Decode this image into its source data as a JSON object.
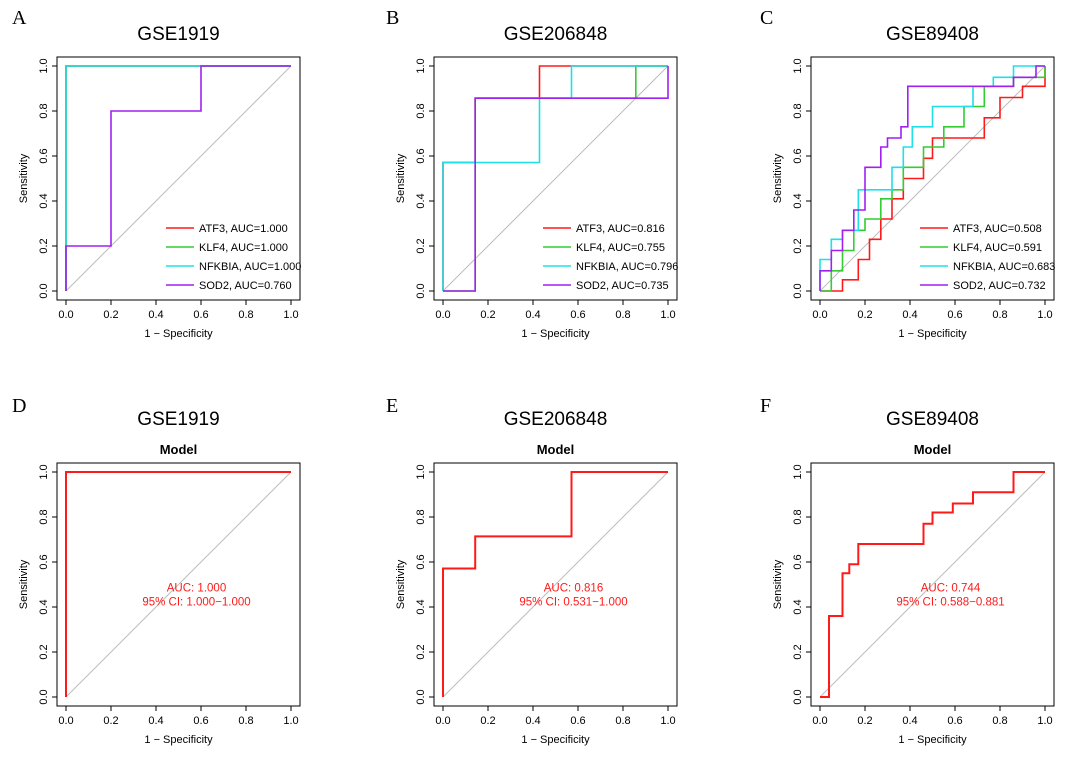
{
  "colors": {
    "red": "#ff1a1a",
    "green": "#33cc33",
    "cyan": "#1ee0e6",
    "purple": "#a020f0",
    "diagonal": "#bdbdbd"
  },
  "chart_data": [
    {
      "panel": "A",
      "title": "GSE1919",
      "type": "line",
      "xlabel": "1 − Specificity",
      "ylabel": "Sensitivity",
      "xlim": [
        0,
        1
      ],
      "ylim": [
        0,
        1
      ],
      "ticks": [
        "0.0",
        "0.2",
        "0.4",
        "0.6",
        "0.8",
        "1.0"
      ],
      "legend_position": "bottom-right",
      "series": [
        {
          "name": "ATF3",
          "legend": "ATF3, AUC=1.000",
          "color": "#ff1a1a",
          "points": [
            [
              0,
              0
            ],
            [
              0,
              1
            ],
            [
              1,
              1
            ]
          ]
        },
        {
          "name": "KLF4",
          "legend": "KLF4, AUC=1.000",
          "color": "#33cc33",
          "points": [
            [
              0,
              0
            ],
            [
              0,
              1
            ],
            [
              1,
              1
            ]
          ]
        },
        {
          "name": "NFKBIA",
          "legend": "NFKBIA, AUC=1.000",
          "color": "#1ee0e6",
          "points": [
            [
              0,
              0
            ],
            [
              0,
              1
            ],
            [
              1,
              1
            ]
          ]
        },
        {
          "name": "SOD2",
          "legend": "SOD2, AUC=0.760",
          "color": "#a020f0",
          "points": [
            [
              0,
              0
            ],
            [
              0,
              0.2
            ],
            [
              0.2,
              0.2
            ],
            [
              0.2,
              0.8
            ],
            [
              0.6,
              0.8
            ],
            [
              0.6,
              1
            ],
            [
              1,
              1
            ]
          ]
        }
      ]
    },
    {
      "panel": "B",
      "title": "GSE206848",
      "type": "line",
      "xlabel": "1 − Specificity",
      "ylabel": "Sensitivity",
      "xlim": [
        0,
        1
      ],
      "ylim": [
        0,
        1
      ],
      "ticks": [
        "0.0",
        "0.2",
        "0.4",
        "0.6",
        "0.8",
        "1.0"
      ],
      "legend_position": "bottom-right",
      "series": [
        {
          "name": "ATF3",
          "legend": "ATF3, AUC=0.816",
          "color": "#ff1a1a",
          "points": [
            [
              0,
              0
            ],
            [
              0,
              0.571
            ],
            [
              0.143,
              0.571
            ],
            [
              0.143,
              0.857
            ],
            [
              0.429,
              0.857
            ],
            [
              0.429,
              1
            ],
            [
              1,
              1
            ]
          ]
        },
        {
          "name": "KLF4",
          "legend": "KLF4, AUC=0.755",
          "color": "#33cc33",
          "points": [
            [
              0,
              0
            ],
            [
              0.143,
              0
            ],
            [
              0.143,
              0.857
            ],
            [
              0.857,
              0.857
            ],
            [
              0.857,
              1
            ],
            [
              1,
              1
            ]
          ]
        },
        {
          "name": "NFKBIA",
          "legend": "NFKBIA, AUC=0.796",
          "color": "#1ee0e6",
          "points": [
            [
              0,
              0
            ],
            [
              0,
              0.571
            ],
            [
              0.429,
              0.571
            ],
            [
              0.429,
              0.857
            ],
            [
              0.571,
              0.857
            ],
            [
              0.571,
              1
            ],
            [
              1,
              1
            ]
          ]
        },
        {
          "name": "SOD2",
          "legend": "SOD2, AUC=0.735",
          "color": "#a020f0",
          "points": [
            [
              0,
              0
            ],
            [
              0.143,
              0
            ],
            [
              0.143,
              0.857
            ],
            [
              1,
              0.857
            ],
            [
              1,
              1
            ]
          ]
        }
      ]
    },
    {
      "panel": "C",
      "title": "GSE89408",
      "type": "line",
      "xlabel": "1 − Specificity",
      "ylabel": "Sensitivity",
      "xlim": [
        0,
        1
      ],
      "ylim": [
        0,
        1
      ],
      "ticks": [
        "0.0",
        "0.2",
        "0.4",
        "0.6",
        "0.8",
        "1.0"
      ],
      "legend_position": "bottom-right",
      "series": [
        {
          "name": "ATF3",
          "legend": "ATF3, AUC=0.508",
          "color": "#ff1a1a",
          "points": [
            [
              0,
              0
            ],
            [
              0.1,
              0
            ],
            [
              0.1,
              0.05
            ],
            [
              0.17,
              0.05
            ],
            [
              0.17,
              0.14
            ],
            [
              0.22,
              0.14
            ],
            [
              0.22,
              0.23
            ],
            [
              0.27,
              0.23
            ],
            [
              0.27,
              0.32
            ],
            [
              0.32,
              0.32
            ],
            [
              0.32,
              0.41
            ],
            [
              0.37,
              0.41
            ],
            [
              0.37,
              0.5
            ],
            [
              0.46,
              0.5
            ],
            [
              0.46,
              0.59
            ],
            [
              0.5,
              0.59
            ],
            [
              0.5,
              0.68
            ],
            [
              0.73,
              0.68
            ],
            [
              0.73,
              0.77
            ],
            [
              0.8,
              0.77
            ],
            [
              0.8,
              0.86
            ],
            [
              0.9,
              0.86
            ],
            [
              0.9,
              0.91
            ],
            [
              1,
              0.91
            ],
            [
              1,
              1
            ]
          ]
        },
        {
          "name": "KLF4",
          "legend": "KLF4, AUC=0.591",
          "color": "#33cc33",
          "points": [
            [
              0,
              0
            ],
            [
              0.05,
              0
            ],
            [
              0.05,
              0.09
            ],
            [
              0.1,
              0.09
            ],
            [
              0.1,
              0.18
            ],
            [
              0.15,
              0.18
            ],
            [
              0.15,
              0.27
            ],
            [
              0.2,
              0.27
            ],
            [
              0.2,
              0.32
            ],
            [
              0.27,
              0.32
            ],
            [
              0.27,
              0.41
            ],
            [
              0.32,
              0.41
            ],
            [
              0.32,
              0.45
            ],
            [
              0.37,
              0.45
            ],
            [
              0.37,
              0.55
            ],
            [
              0.46,
              0.55
            ],
            [
              0.46,
              0.64
            ],
            [
              0.55,
              0.64
            ],
            [
              0.55,
              0.73
            ],
            [
              0.64,
              0.73
            ],
            [
              0.64,
              0.82
            ],
            [
              0.73,
              0.82
            ],
            [
              0.73,
              0.91
            ],
            [
              0.86,
              0.91
            ],
            [
              0.86,
              0.95
            ],
            [
              1,
              0.95
            ],
            [
              1,
              1
            ]
          ]
        },
        {
          "name": "NFKBIA",
          "legend": "NFKBIA, AUC=0.683",
          "color": "#1ee0e6",
          "points": [
            [
              0,
              0
            ],
            [
              0,
              0.14
            ],
            [
              0.05,
              0.14
            ],
            [
              0.05,
              0.23
            ],
            [
              0.1,
              0.23
            ],
            [
              0.1,
              0.27
            ],
            [
              0.17,
              0.27
            ],
            [
              0.17,
              0.45
            ],
            [
              0.32,
              0.45
            ],
            [
              0.32,
              0.55
            ],
            [
              0.37,
              0.55
            ],
            [
              0.37,
              0.64
            ],
            [
              0.41,
              0.64
            ],
            [
              0.41,
              0.73
            ],
            [
              0.5,
              0.73
            ],
            [
              0.5,
              0.82
            ],
            [
              0.68,
              0.82
            ],
            [
              0.68,
              0.91
            ],
            [
              0.77,
              0.91
            ],
            [
              0.77,
              0.95
            ],
            [
              0.86,
              0.95
            ],
            [
              0.86,
              1
            ],
            [
              1,
              1
            ]
          ]
        },
        {
          "name": "SOD2",
          "legend": "SOD2, AUC=0.732",
          "color": "#a020f0",
          "points": [
            [
              0,
              0
            ],
            [
              0,
              0.09
            ],
            [
              0.05,
              0.09
            ],
            [
              0.05,
              0.18
            ],
            [
              0.1,
              0.18
            ],
            [
              0.1,
              0.27
            ],
            [
              0.15,
              0.27
            ],
            [
              0.15,
              0.36
            ],
            [
              0.2,
              0.36
            ],
            [
              0.2,
              0.55
            ],
            [
              0.27,
              0.55
            ],
            [
              0.27,
              0.64
            ],
            [
              0.3,
              0.64
            ],
            [
              0.3,
              0.68
            ],
            [
              0.36,
              0.68
            ],
            [
              0.36,
              0.73
            ],
            [
              0.39,
              0.73
            ],
            [
              0.39,
              0.91
            ],
            [
              0.86,
              0.91
            ],
            [
              0.86,
              0.95
            ],
            [
              0.96,
              0.95
            ],
            [
              0.96,
              1
            ],
            [
              1,
              1
            ]
          ]
        }
      ]
    },
    {
      "panel": "D",
      "title": "GSE1919",
      "subtitle": "Model",
      "type": "line",
      "xlabel": "1 − Specificity",
      "ylabel": "Sensitivity",
      "xlim": [
        0,
        1
      ],
      "ylim": [
        0,
        1
      ],
      "ticks": [
        "0.0",
        "0.2",
        "0.4",
        "0.6",
        "0.8",
        "1.0"
      ],
      "annotation": {
        "auc": "AUC: 1.000",
        "ci": "95% CI: 1.000−1.000",
        "color": "#ff1a1a",
        "x": 0.58,
        "y": 0.47
      },
      "series": [
        {
          "name": "Model",
          "color": "#ff1a1a",
          "points": [
            [
              0,
              0
            ],
            [
              0,
              1
            ],
            [
              1,
              1
            ]
          ]
        }
      ]
    },
    {
      "panel": "E",
      "title": "GSE206848",
      "subtitle": "Model",
      "type": "line",
      "xlabel": "1 − Specificity",
      "ylabel": "Sensitivity",
      "xlim": [
        0,
        1
      ],
      "ylim": [
        0,
        1
      ],
      "ticks": [
        "0.0",
        "0.2",
        "0.4",
        "0.6",
        "0.8",
        "1.0"
      ],
      "annotation": {
        "auc": "AUC: 0.816",
        "ci": "95% CI: 0.531−1.000",
        "color": "#ff1a1a",
        "x": 0.58,
        "y": 0.47
      },
      "series": [
        {
          "name": "Model",
          "color": "#ff1a1a",
          "points": [
            [
              0,
              0
            ],
            [
              0,
              0.571
            ],
            [
              0.143,
              0.571
            ],
            [
              0.143,
              0.714
            ],
            [
              0.571,
              0.714
            ],
            [
              0.571,
              1
            ],
            [
              1,
              1
            ]
          ]
        }
      ]
    },
    {
      "panel": "F",
      "title": "GSE89408",
      "subtitle": "Model",
      "type": "line",
      "xlabel": "1 − Specificity",
      "ylabel": "Sensitivity",
      "xlim": [
        0,
        1
      ],
      "ylim": [
        0,
        1
      ],
      "ticks": [
        "0.0",
        "0.2",
        "0.4",
        "0.6",
        "0.8",
        "1.0"
      ],
      "annotation": {
        "auc": "AUC: 0.744",
        "ci": "95% CI: 0.588−0.881",
        "color": "#ff1a1a",
        "x": 0.58,
        "y": 0.47
      },
      "series": [
        {
          "name": "Model",
          "color": "#ff1a1a",
          "points": [
            [
              0,
              0
            ],
            [
              0.04,
              0
            ],
            [
              0.04,
              0.36
            ],
            [
              0.1,
              0.36
            ],
            [
              0.1,
              0.55
            ],
            [
              0.13,
              0.55
            ],
            [
              0.13,
              0.59
            ],
            [
              0.17,
              0.59
            ],
            [
              0.17,
              0.68
            ],
            [
              0.46,
              0.68
            ],
            [
              0.46,
              0.77
            ],
            [
              0.5,
              0.77
            ],
            [
              0.5,
              0.82
            ],
            [
              0.59,
              0.82
            ],
            [
              0.59,
              0.86
            ],
            [
              0.68,
              0.86
            ],
            [
              0.68,
              0.91
            ],
            [
              0.86,
              0.91
            ],
            [
              0.86,
              1
            ],
            [
              1,
              1
            ]
          ]
        }
      ]
    }
  ]
}
